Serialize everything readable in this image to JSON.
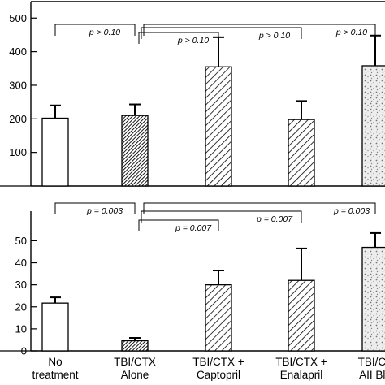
{
  "chart_data": [
    {
      "type": "bar",
      "categories": [
        [
          "No",
          "treatment"
        ],
        [
          "TBI/CTX",
          "Alone"
        ],
        [
          "TBI/CTX +",
          "Captopril"
        ],
        [
          "TBI/CTX +",
          "Enalapril"
        ],
        [
          "TBI/CT",
          "AII Blo"
        ]
      ],
      "values": [
        202,
        210,
        355,
        198,
        358
      ],
      "errors": [
        38,
        33,
        88,
        55,
        90
      ],
      "patterns": [
        "none",
        "dense",
        "hatch",
        "hatch",
        "stipple"
      ],
      "ylim": [
        0,
        520
      ],
      "yticks": [
        100,
        200,
        300,
        400,
        500
      ],
      "annotations": [
        {
          "text": "p > 0.10",
          "from": 0,
          "to": 1
        },
        {
          "text": "p > 0.10",
          "from": 1,
          "to": 2
        },
        {
          "text": "p > 0.10",
          "from": 1,
          "to": 3
        },
        {
          "text": "p > 0.10",
          "from": 1,
          "to": 4
        }
      ]
    },
    {
      "type": "bar",
      "categories": [
        [
          "No",
          "treatment"
        ],
        [
          "TBI/CTX",
          "Alone"
        ],
        [
          "TBI/CTX +",
          "Captopril"
        ],
        [
          "TBI/CTX +",
          "Enalapril"
        ],
        [
          "TBI/CT",
          "AII Blo"
        ]
      ],
      "values": [
        21.7,
        4.6,
        30,
        32,
        47
      ],
      "errors": [
        2.6,
        1.3,
        6.5,
        14.5,
        6.5
      ],
      "patterns": [
        "none",
        "dense",
        "hatch",
        "hatch",
        "stipple"
      ],
      "ylim": [
        0,
        59
      ],
      "yticks": [
        0,
        10,
        20,
        30,
        40,
        50
      ],
      "annotations": [
        {
          "text": "p = 0.003",
          "from": 0,
          "to": 1
        },
        {
          "text": "p = 0.007",
          "from": 1,
          "to": 2
        },
        {
          "text": "p = 0.007",
          "from": 1,
          "to": 3
        },
        {
          "text": "p = 0.003",
          "from": 1,
          "to": 4
        }
      ]
    }
  ]
}
